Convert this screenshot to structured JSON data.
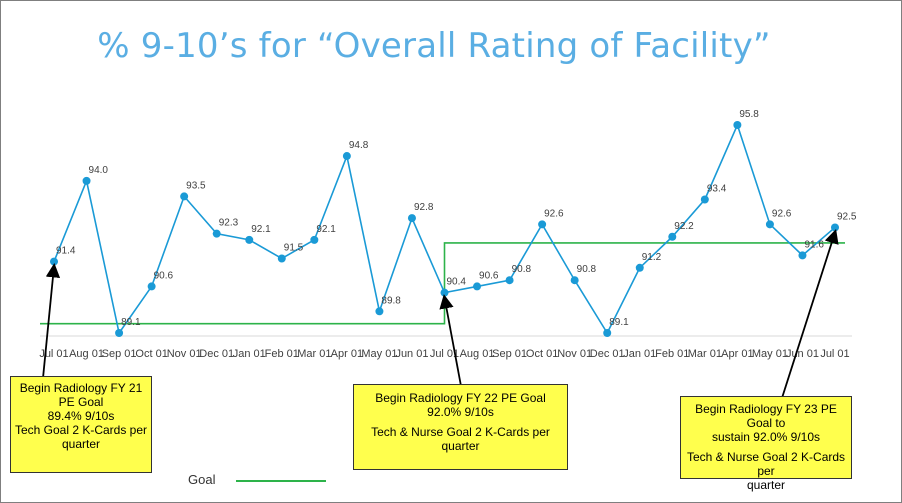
{
  "title": "% 9-10’s for “Overall Rating of Facility”",
  "chart_data": {
    "type": "line",
    "title": "% 9-10’s for “Overall Rating of Facility”",
    "categories": [
      "Jul 01",
      "Aug 01",
      "Sep 01",
      "Oct 01",
      "Nov 01",
      "Dec 01",
      "Jan 01",
      "Feb 01",
      "Mar 01",
      "Apr 01",
      "May 01",
      "Jun 01",
      "Jul 01",
      "Aug 01",
      "Sep 01",
      "Oct 01",
      "Nov 01",
      "Dec 01",
      "Jan 01",
      "Feb 01",
      "Mar 01",
      "Apr 01",
      "May 01",
      "Jun 01",
      "Jul 01"
    ],
    "series": [
      {
        "values": [
          91.4,
          94.0,
          89.1,
          90.6,
          93.5,
          92.3,
          92.1,
          91.5,
          92.1,
          94.8,
          89.8,
          92.8,
          90.4,
          90.6,
          90.8,
          92.6,
          90.8,
          89.1,
          91.2,
          92.2,
          93.4,
          95.8,
          92.6,
          91.6,
          92.5
        ],
        "color": "#1a9ad6"
      },
      {
        "name": "Goal",
        "values": [
          89.4,
          89.4,
          89.4,
          89.4,
          89.4,
          89.4,
          89.4,
          89.4,
          89.4,
          89.4,
          89.4,
          89.4,
          92.0,
          92.0,
          92.0,
          92.0,
          92.0,
          92.0,
          92.0,
          92.0,
          92.0,
          92.0,
          92.0,
          92.0,
          92.0
        ],
        "color": "#2db34a"
      }
    ],
    "data_labels": [
      "91.4",
      "94.0",
      "89.1",
      "90.6",
      "93.5",
      "92.3",
      "92.1",
      "91.5",
      "92.1",
      "94.8",
      "89.8",
      "92.8",
      "90.4",
      "90.6",
      "90.8",
      "92.6",
      "90.8",
      "89.1",
      "91.2",
      "92.2",
      "93.4",
      "95.8",
      "92.6",
      "91.6",
      "92.5"
    ],
    "x_tick_labels": [
      "Jul 01",
      "Aug 01",
      "Sep 01",
      "Oct 01",
      "Nov 01",
      "Dec 01",
      "Jan 01",
      "Feb 01",
      "Mar 01",
      "Apr 01",
      "May 01",
      "Jun 01",
      "Jul 01",
      "Aug 01",
      "Sep 01",
      "Oct 01",
      "Nov 01",
      "Dec 01",
      "Jan 01",
      "Feb 01",
      "Mar 01",
      "Apr 01",
      "May 01",
      "Jun 01",
      "Jul 01"
    ],
    "ylim": [
      89.1,
      95.8
    ],
    "legend": {
      "label": "Goal",
      "position": "bottom-left"
    },
    "grid": false
  },
  "callouts": [
    {
      "lines": [
        "Begin Radiology FY 21",
        "PE Goal",
        "89.4%  9/10s",
        "Tech Goal 2 K-Cards per",
        "quarter"
      ],
      "target_index": 0
    },
    {
      "lines": [
        "Begin Radiology FY 22 PE Goal",
        "92.0%  9/10s",
        "Tech & Nurse Goal 2 K-Cards per",
        "quarter"
      ],
      "target_index": 12
    },
    {
      "lines": [
        "Begin Radiology FY 23 PE Goal to",
        "sustain 92.0%  9/10s",
        "Tech & Nurse Goal 2 K-Cards per",
        "quarter"
      ],
      "target_index": 24
    }
  ],
  "colors": {
    "title": "#5aaee3",
    "series": "#1a9ad6",
    "goal": "#2db34a",
    "callout_bg": "#ffff4d"
  }
}
